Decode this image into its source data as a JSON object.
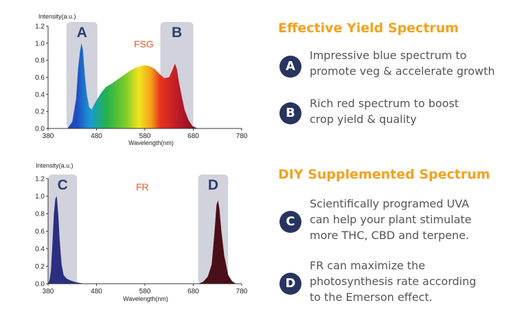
{
  "chart_data": [
    {
      "type": "area",
      "tag": "FSG",
      "ylabel": "Intensity(a.u.)",
      "xlabel": "Wavelength(nm)",
      "xlim": [
        380,
        780
      ],
      "ylim": [
        0,
        1.2
      ],
      "x_ticks": [
        "380",
        "480",
        "580",
        "680",
        "780"
      ],
      "y_ticks": [
        "0.0",
        "0.2",
        "0.4",
        "0.6",
        "0.8",
        "1.0",
        "1.2"
      ],
      "x": [
        420,
        430,
        438,
        442,
        446,
        449,
        452,
        456,
        460,
        465,
        470,
        475,
        480,
        490,
        500,
        510,
        520,
        530,
        540,
        550,
        560,
        570,
        580,
        590,
        600,
        610,
        620,
        630,
        638,
        642,
        646,
        650,
        656,
        662,
        670,
        678,
        685,
        690
      ],
      "y": [
        0.0,
        0.08,
        0.35,
        0.7,
        0.9,
        1.0,
        0.92,
        0.62,
        0.4,
        0.25,
        0.22,
        0.28,
        0.33,
        0.42,
        0.49,
        0.52,
        0.56,
        0.6,
        0.64,
        0.68,
        0.71,
        0.73,
        0.74,
        0.73,
        0.7,
        0.64,
        0.59,
        0.6,
        0.7,
        0.76,
        0.7,
        0.55,
        0.38,
        0.22,
        0.1,
        0.03,
        0.01,
        0.0
      ],
      "regions": [
        {
          "label": "A",
          "x0": 418,
          "x1": 482
        },
        {
          "label": "B",
          "x0": 612,
          "x1": 680
        }
      ]
    },
    {
      "type": "area",
      "tag": "FR",
      "ylabel": "Intensity(a.u.)",
      "xlabel": "Wavelength(nm)",
      "xlim": [
        380,
        780
      ],
      "ylim": [
        0,
        1.2
      ],
      "x_ticks": [
        "380",
        "480",
        "580",
        "680",
        "780"
      ],
      "y_ticks": [
        "0.0",
        "0.2",
        "0.4",
        "0.6",
        "0.8",
        "1.0",
        "1.2"
      ],
      "series": [
        {
          "x": [
            380,
            383,
            386,
            389,
            392,
            395,
            398,
            401,
            404,
            408,
            412,
            418,
            425,
            435,
            445,
            455
          ],
          "y": [
            0.0,
            0.04,
            0.15,
            0.45,
            0.8,
            0.97,
            1.0,
            0.8,
            0.5,
            0.22,
            0.1,
            0.06,
            0.04,
            0.02,
            0.01,
            0.0
          ],
          "color": "#2a2f80"
        },
        {
          "x": [
            690,
            700,
            710,
            718,
            724,
            728,
            731,
            734,
            738,
            744,
            752,
            760,
            768
          ],
          "y": [
            0.0,
            0.02,
            0.08,
            0.22,
            0.6,
            0.9,
            0.95,
            0.85,
            0.6,
            0.32,
            0.1,
            0.03,
            0.0
          ],
          "color": "#4a0f18"
        }
      ],
      "regions": [
        {
          "label": "C",
          "x0": 380,
          "x1": 440
        },
        {
          "label": "D",
          "x0": 690,
          "x1": 752
        }
      ]
    }
  ],
  "section1": {
    "title": "Effective Yield Spectrum",
    "items": [
      {
        "badge": "A",
        "lines": [
          "Impressive blue spectrum to",
          "promote veg & accelerate growth"
        ]
      },
      {
        "badge": "B",
        "lines": [
          "Rich red spectrum to boost",
          "crop yield & quality"
        ]
      }
    ]
  },
  "section2": {
    "title": "DIY Supplemented Spectrum",
    "items": [
      {
        "badge": "C",
        "lines": [
          "Scientifically programed UVA",
          "can help your plant stimulate",
          "more THC, CBD and terpene."
        ]
      },
      {
        "badge": "D",
        "lines": [
          "FR can maximize the",
          "photosynthesis rate according",
          "to the Emerson effect."
        ]
      }
    ]
  },
  "colors": {
    "title": "#f5a11c",
    "badge": "#26345f",
    "tag": "#e15a2b",
    "region": "#c9cad6"
  }
}
